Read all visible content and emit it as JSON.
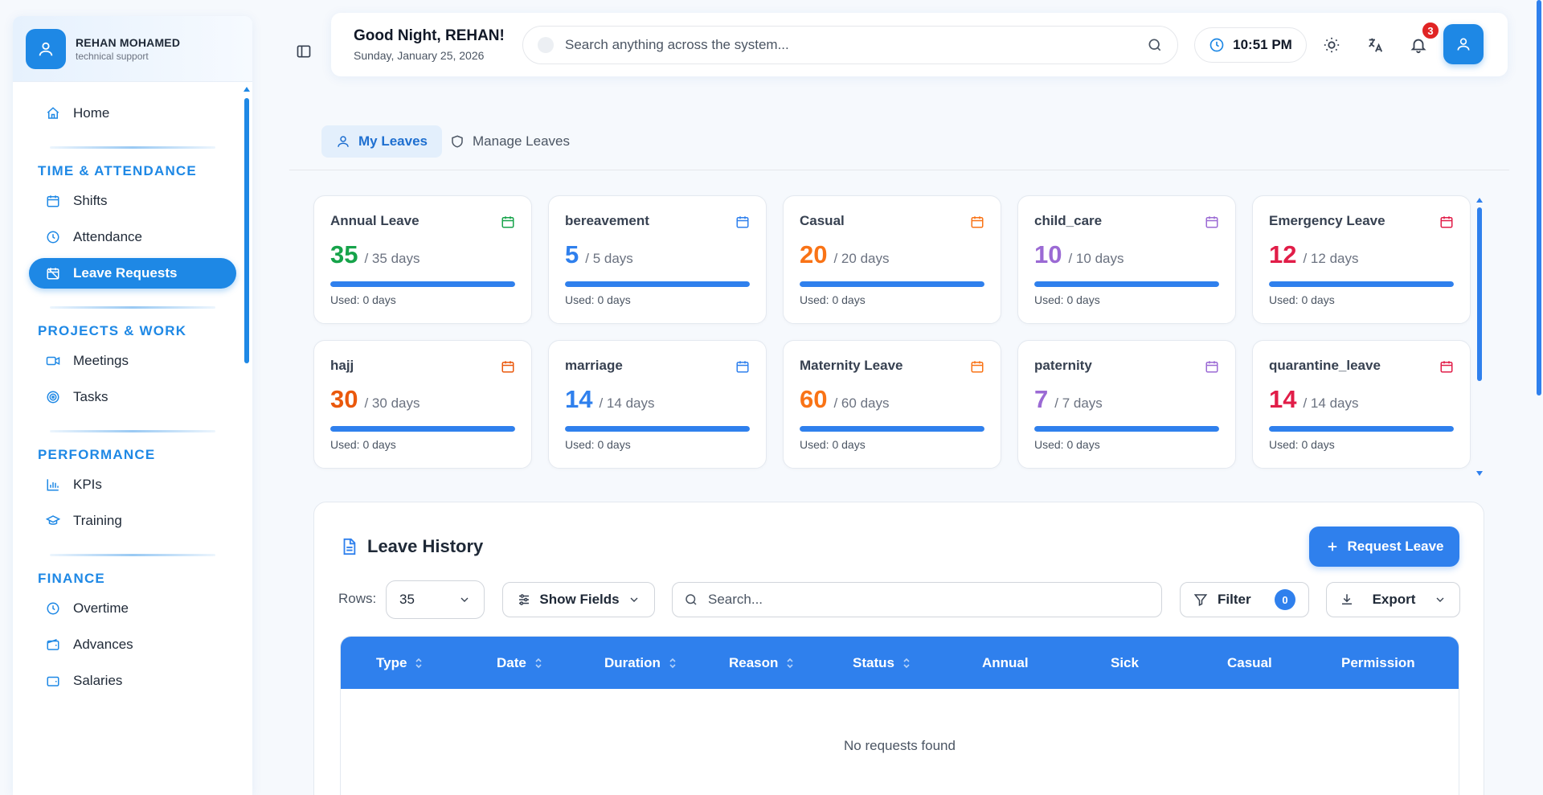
{
  "sidebar": {
    "profile": {
      "name": "REHAN MOHAMED",
      "role": "technical support"
    },
    "home": "Home",
    "sections": {
      "time": {
        "title": "TIME & ATTENDANCE",
        "items": [
          "Shifts",
          "Attendance",
          "Leave Requests"
        ]
      },
      "projects": {
        "title": "PROJECTS & WORK",
        "items": [
          "Meetings",
          "Tasks"
        ]
      },
      "performance": {
        "title": "PERFORMANCE",
        "items": [
          "KPIs",
          "Training"
        ]
      },
      "finance": {
        "title": "FINANCE",
        "items": [
          "Overtime",
          "Advances",
          "Salaries"
        ]
      }
    },
    "active_item": "Leave Requests"
  },
  "header": {
    "greeting": "Good Night, REHAN!",
    "date": "Sunday, January 25, 2026",
    "search_placeholder": "Search anything across the system...",
    "time": "10:51 PM",
    "notification_count": "3"
  },
  "tabs": [
    {
      "label": "My Leaves",
      "active": true
    },
    {
      "label": "Manage Leaves",
      "active": false
    }
  ],
  "leave_cards": [
    {
      "name": "Annual Leave",
      "remaining": "35",
      "total": "/ 35 days",
      "used": "Used: 0 days",
      "color": "#16a34a",
      "used_fraction": 0
    },
    {
      "name": "bereavement",
      "remaining": "5",
      "total": "/ 5 days",
      "used": "Used: 0 days",
      "color": "#2f80ed",
      "used_fraction": 0
    },
    {
      "name": "Casual",
      "remaining": "20",
      "total": "/ 20 days",
      "used": "Used: 0 days",
      "color": "#f97316",
      "used_fraction": 0
    },
    {
      "name": "child_care",
      "remaining": "10",
      "total": "/ 10 days",
      "used": "Used: 0 days",
      "color": "#9b6ad4",
      "used_fraction": 0
    },
    {
      "name": "Emergency Leave",
      "remaining": "12",
      "total": "/ 12 days",
      "used": "Used: 0 days",
      "color": "#e11d48",
      "used_fraction": 0
    },
    {
      "name": "hajj",
      "remaining": "30",
      "total": "/ 30 days",
      "used": "Used: 0 days",
      "color": "#ea580c",
      "used_fraction": 0
    },
    {
      "name": "marriage",
      "remaining": "14",
      "total": "/ 14 days",
      "used": "Used: 0 days",
      "color": "#2f80ed",
      "used_fraction": 0
    },
    {
      "name": "Maternity Leave",
      "remaining": "60",
      "total": "/ 60 days",
      "used": "Used: 0 days",
      "color": "#f97316",
      "used_fraction": 0
    },
    {
      "name": "paternity",
      "remaining": "7",
      "total": "/ 7 days",
      "used": "Used: 0 days",
      "color": "#9b6ad4",
      "used_fraction": 0
    },
    {
      "name": "quarantine_leave",
      "remaining": "14",
      "total": "/ 14 days",
      "used": "Used: 0 days",
      "color": "#e11d48",
      "used_fraction": 0
    }
  ],
  "history": {
    "title": "Leave History",
    "request_button": "Request Leave",
    "rows_label": "Rows:",
    "rows_value": "35",
    "show_fields": "Show Fields",
    "search_placeholder": "Search...",
    "filter_label": "Filter",
    "filter_count": "0",
    "export_label": "Export",
    "columns": [
      "Type",
      "Date",
      "Duration",
      "Reason",
      "Status",
      "Annual",
      "Sick",
      "Casual",
      "Permission"
    ],
    "empty_message": "No requests found"
  },
  "colors": {
    "accent": "#1e88e5",
    "primary_button": "#2f80ed",
    "badge": "#e02424"
  }
}
